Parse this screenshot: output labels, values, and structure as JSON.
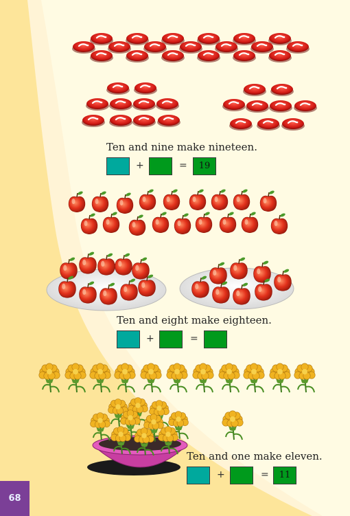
{
  "page_number": "68",
  "exercises": [
    {
      "sentence": "Ten and nine make nineteen.",
      "operator": "+",
      "equals": "=",
      "answer": "19"
    },
    {
      "sentence": "Ten and eight make eighteen.",
      "operator": "+",
      "equals": "=",
      "answer": ""
    },
    {
      "sentence": "Ten and one make eleven.",
      "operator": "+",
      "equals": "=",
      "answer": "11"
    }
  ],
  "colors": {
    "background": "#fde59a",
    "page_panel": "#fffbe0",
    "teal_box": "#00a99d",
    "green_box": "#009a1c",
    "page_tab": "#7b3f97"
  },
  "icons": {
    "candy": "red-candy-icon",
    "apple": "apple-icon",
    "flower": "marigold-icon",
    "plate": "plate-icon",
    "bowl": "bowl-icon"
  }
}
